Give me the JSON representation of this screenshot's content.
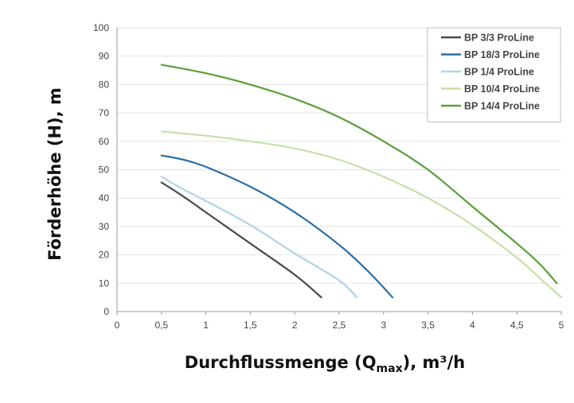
{
  "chart_data": {
    "type": "line",
    "xlabel": "Durchflussmenge (Q",
    "xlabel_sub": "max",
    "xlabel_suffix": "), m³/h",
    "ylabel": "Förderhöhe (H), m",
    "xlim": [
      0,
      5
    ],
    "ylim": [
      0,
      100
    ],
    "x_ticks": [
      0,
      0.5,
      1,
      1.5,
      2,
      2.5,
      3,
      3.5,
      4,
      4.5,
      5
    ],
    "x_tick_labels": [
      "0",
      "0,5",
      "1",
      "1,5",
      "2",
      "2,5",
      "3",
      "3,5",
      "4",
      "4,5",
      "5"
    ],
    "y_ticks": [
      0,
      10,
      20,
      30,
      40,
      50,
      60,
      70,
      80,
      90,
      100
    ],
    "y_tick_labels": [
      "0",
      "10",
      "20",
      "30",
      "40",
      "50",
      "60",
      "70",
      "80",
      "90",
      "100"
    ],
    "grid": "horizontal",
    "legend_position": "top-right",
    "series": [
      {
        "name": "BP 3/3 ProLine",
        "color": "#4a4a4a",
        "points": [
          [
            0.5,
            45.5
          ],
          [
            0.75,
            40.5
          ],
          [
            1.0,
            35
          ],
          [
            1.5,
            24
          ],
          [
            2.0,
            13
          ],
          [
            2.3,
            5
          ]
        ]
      },
      {
        "name": "BP 18/3 ProLine",
        "color": "#2a6ea6",
        "points": [
          [
            0.5,
            55
          ],
          [
            0.75,
            53.5
          ],
          [
            1.0,
            51
          ],
          [
            1.5,
            44
          ],
          [
            2.0,
            35
          ],
          [
            2.5,
            23.5
          ],
          [
            2.8,
            15
          ],
          [
            3.0,
            8.5
          ],
          [
            3.1,
            5
          ]
        ]
      },
      {
        "name": "BP 1/4 ProLine",
        "color": "#b0d4e6",
        "points": [
          [
            0.5,
            47.5
          ],
          [
            0.75,
            43
          ],
          [
            1.0,
            39
          ],
          [
            1.5,
            30.5
          ],
          [
            2.0,
            20.5
          ],
          [
            2.5,
            11
          ],
          [
            2.7,
            5
          ]
        ]
      },
      {
        "name": "BP 10/4 ProLine",
        "color": "#c6e0a6",
        "points": [
          [
            0.5,
            63.5
          ],
          [
            1.0,
            62
          ],
          [
            1.5,
            60
          ],
          [
            2.0,
            57.5
          ],
          [
            2.5,
            53.5
          ],
          [
            3.0,
            47.5
          ],
          [
            3.5,
            40
          ],
          [
            4.0,
            30.5
          ],
          [
            4.5,
            19
          ],
          [
            4.75,
            12
          ],
          [
            5.0,
            5
          ]
        ]
      },
      {
        "name": "BP 14/4 ProLine",
        "color": "#5a9e3a",
        "points": [
          [
            0.5,
            87
          ],
          [
            1.0,
            84
          ],
          [
            1.5,
            80
          ],
          [
            2.0,
            75
          ],
          [
            2.5,
            68.5
          ],
          [
            3.0,
            60
          ],
          [
            3.5,
            50
          ],
          [
            4.0,
            37
          ],
          [
            4.5,
            24
          ],
          [
            4.75,
            17
          ],
          [
            4.95,
            10
          ]
        ]
      }
    ]
  }
}
